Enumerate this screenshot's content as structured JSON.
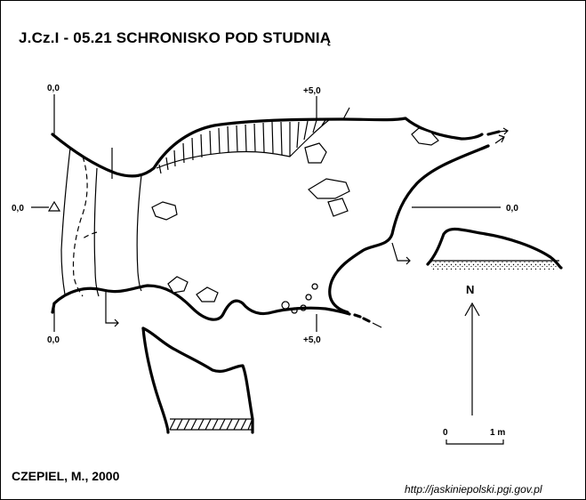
{
  "title": "J.Cz.I - 05.21  SCHRONISKO POD STUDNIĄ",
  "author": "CZEPIEL, M., 2000",
  "source_url": "http://jaskiniepolski.pgi.gov.pl",
  "elevations": {
    "top_left": "0,0",
    "left_mid": "0,0",
    "bottom_left": "0,0",
    "top_right": "+5,0",
    "bottom_right": "+5,0",
    "right_mid": "0,0"
  },
  "north_label": "N",
  "scale": {
    "start": "0",
    "end": "1 m"
  }
}
